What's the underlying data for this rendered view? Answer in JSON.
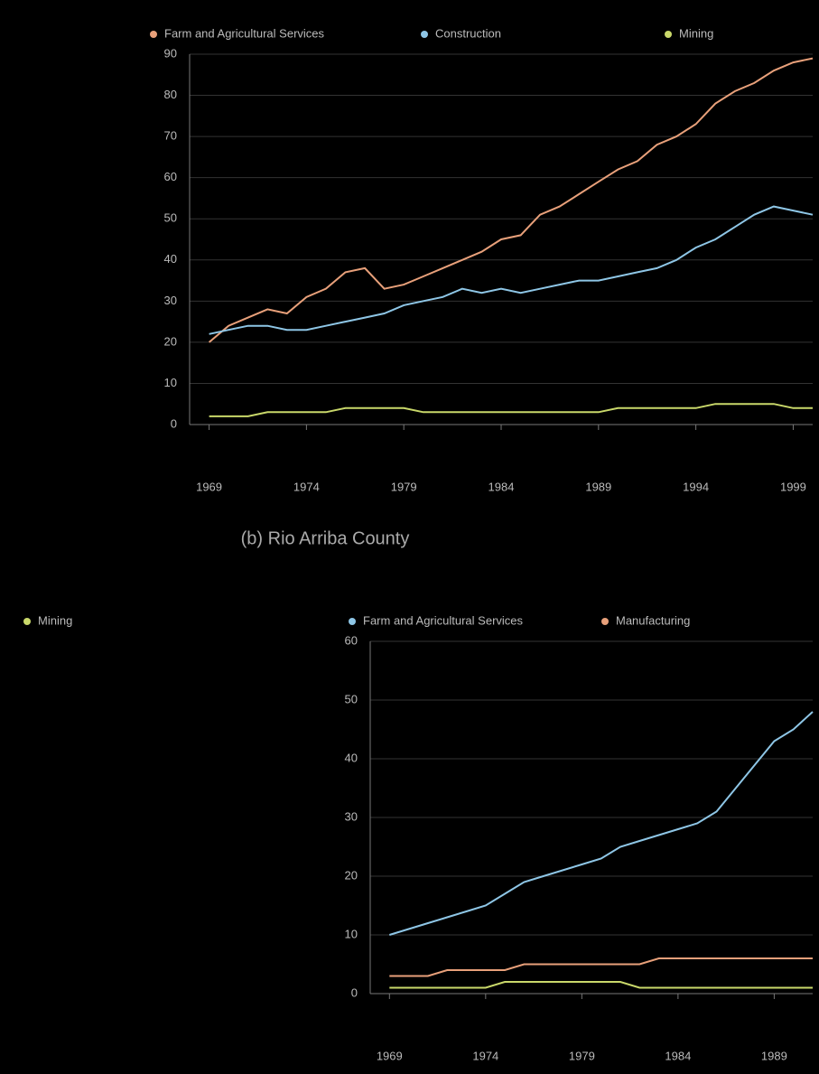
{
  "chart_data": [
    {
      "type": "line",
      "legend": "top",
      "x": [
        1969,
        1970,
        1971,
        1972,
        1973,
        1974,
        1975,
        1976,
        1977,
        1978,
        1979,
        1980,
        1981,
        1982,
        1983,
        1984,
        1985,
        1986,
        1987,
        1988,
        1989,
        1990,
        1991,
        1992,
        1993,
        1994,
        1995,
        1996,
        1997,
        1998,
        1999,
        2000
      ],
      "xlim": [
        1968,
        2000
      ],
      "xticks": [
        1969,
        1974,
        1979,
        1984,
        1989,
        1994,
        1999
      ],
      "ylim": [
        0,
        90
      ],
      "yticks": [
        0,
        10,
        20,
        30,
        40,
        50,
        60,
        70,
        80,
        90
      ],
      "grid": true,
      "series": [
        {
          "name": "Farm and Agricultural Services",
          "color": "#e8a07a",
          "values": [
            20,
            24,
            26,
            28,
            27,
            31,
            33,
            37,
            38,
            33,
            34,
            36,
            38,
            40,
            42,
            45,
            46,
            51,
            53,
            56,
            59,
            62,
            64,
            68,
            70,
            73,
            78,
            81,
            83,
            86,
            88,
            89
          ]
        },
        {
          "name": "Construction",
          "color": "#8ec6e6",
          "values": [
            22,
            23,
            24,
            24,
            23,
            23,
            24,
            25,
            26,
            27,
            29,
            30,
            31,
            33,
            32,
            33,
            32,
            33,
            34,
            35,
            35,
            36,
            37,
            38,
            40,
            43,
            45,
            48,
            51,
            53,
            52,
            51
          ]
        },
        {
          "name": "Mining",
          "color": "#c9d86a",
          "values": [
            2,
            2,
            2,
            3,
            3,
            3,
            3,
            4,
            4,
            4,
            4,
            3,
            3,
            3,
            3,
            3,
            3,
            3,
            3,
            3,
            3,
            4,
            4,
            4,
            4,
            4,
            5,
            5,
            5,
            5,
            4,
            4
          ]
        }
      ]
    },
    {
      "type": "line",
      "legend": "top",
      "caption": "(b)  Rio Arriba County",
      "x": [
        1969,
        1970,
        1971,
        1972,
        1973,
        1974,
        1975,
        1976,
        1977,
        1978,
        1979,
        1980,
        1981,
        1982,
        1983,
        1984,
        1985,
        1986,
        1987,
        1988,
        1989,
        1990,
        1991
      ],
      "xlim": [
        1968,
        1991
      ],
      "xticks": [
        1969,
        1974,
        1979,
        1984,
        1989
      ],
      "ylim": [
        0,
        60
      ],
      "yticks": [
        0,
        10,
        20,
        30,
        40,
        50,
        60
      ],
      "grid": true,
      "series": [
        {
          "name": "Mining",
          "color": "#c9d86a",
          "values": [
            1,
            1,
            1,
            1,
            1,
            1,
            2,
            2,
            2,
            2,
            2,
            2,
            2,
            1,
            1,
            1,
            1,
            1,
            1,
            1,
            1,
            1,
            1
          ]
        },
        {
          "name": "Farm and Agricultural Services",
          "color": "#8ec6e6",
          "values": [
            10,
            11,
            12,
            13,
            14,
            15,
            17,
            19,
            20,
            21,
            22,
            23,
            25,
            26,
            27,
            28,
            29,
            31,
            35,
            39,
            43,
            45,
            48
          ]
        },
        {
          "name": "Manufacturing",
          "color": "#e8a07a",
          "values": [
            3,
            3,
            3,
            4,
            4,
            4,
            4,
            5,
            5,
            5,
            5,
            5,
            5,
            5,
            6,
            6,
            6,
            6,
            6,
            6,
            6,
            6,
            6
          ]
        }
      ]
    }
  ]
}
